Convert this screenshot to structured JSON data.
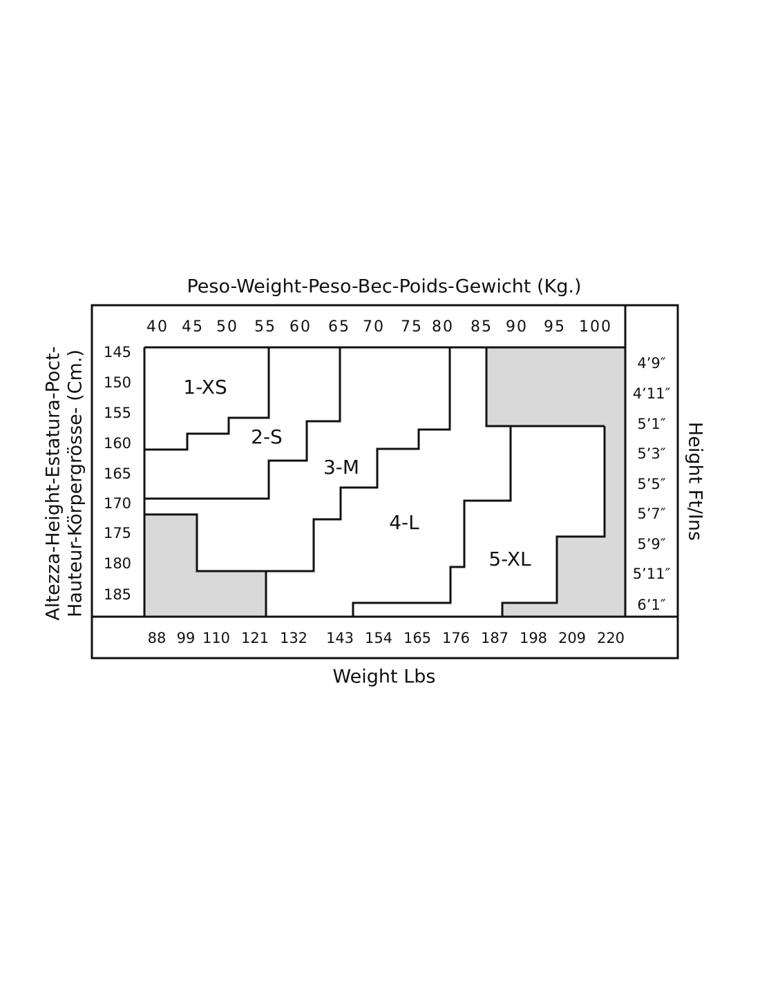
{
  "title": "Peso-Weight-Peso-Bec-Poids-Gewicht (Kg.)",
  "x_bottom_title": "Weight Lbs",
  "y_left_title": [
    "Altezza-Height-Estatura-Poct-",
    "Hauteur-Körpergrösse- (Cm.)"
  ],
  "y_right_title": "Height Ft/Ins",
  "kg": [
    "40",
    "45",
    "50",
    "55",
    "60",
    "65",
    "70",
    "75",
    "80",
    "85",
    "90",
    "95",
    "100"
  ],
  "lbs": [
    "88",
    "99",
    "110",
    "121",
    "132",
    "143",
    "154",
    "165",
    "176",
    "187",
    "198",
    "209",
    "220"
  ],
  "cm": [
    "145",
    "150",
    "155",
    "160",
    "165",
    "170",
    "175",
    "180",
    "185"
  ],
  "ft": [
    "4’9″",
    "4’11″",
    "5’1″",
    "5’3″",
    "5’5″",
    "5’7″",
    "5’9″",
    "5’11″",
    "6’1″"
  ],
  "sizes": [
    "1-XS",
    "2-S",
    "3-M",
    "4-L",
    "5-XL"
  ]
}
